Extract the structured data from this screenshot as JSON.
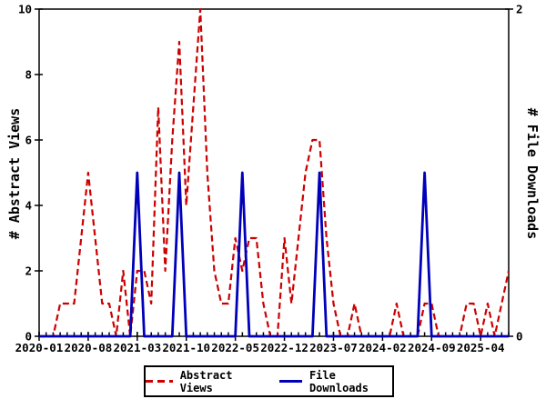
{
  "chart": {
    "left_axis": {
      "label": "# Abstract Views",
      "ticks": [
        0,
        2,
        4,
        6,
        8,
        10
      ]
    },
    "right_axis": {
      "label": "# File Downloads",
      "ticks": [
        0,
        2
      ]
    },
    "x_axis": {
      "major_tick_months": [
        0,
        7,
        14,
        21,
        28,
        35,
        42,
        49,
        56,
        63
      ],
      "major_tick_labels": [
        "2020-01",
        "2020-08",
        "2021-03",
        "2021-10",
        "2022-05",
        "2022-12",
        "2023-07",
        "2024-02",
        "2024-09",
        "2025-04"
      ]
    },
    "colors": {
      "abstract_views": "#cc0000",
      "file_downloads": "#0000bb",
      "axis": "#000000",
      "background": "#ffffff"
    }
  },
  "chart_data": {
    "type": "line",
    "title": "",
    "xlabel": "",
    "left_ylabel": "# Abstract Views",
    "right_ylabel": "# File Downloads",
    "left_ylim": [
      0,
      10
    ],
    "right_ylim": [
      0,
      2
    ],
    "grid": false,
    "legend_position": "bottom",
    "x": [
      "2020-01",
      "2020-02",
      "2020-03",
      "2020-04",
      "2020-05",
      "2020-06",
      "2020-07",
      "2020-08",
      "2020-09",
      "2020-10",
      "2020-11",
      "2020-12",
      "2021-01",
      "2021-02",
      "2021-03",
      "2021-04",
      "2021-05",
      "2021-06",
      "2021-07",
      "2021-08",
      "2021-09",
      "2021-10",
      "2021-11",
      "2021-12",
      "2022-01",
      "2022-02",
      "2022-03",
      "2022-04",
      "2022-05",
      "2022-06",
      "2022-07",
      "2022-08",
      "2022-09",
      "2022-10",
      "2022-11",
      "2022-12",
      "2023-01",
      "2023-02",
      "2023-03",
      "2023-04",
      "2023-05",
      "2023-06",
      "2023-07",
      "2023-08",
      "2023-09",
      "2023-10",
      "2023-11",
      "2023-12",
      "2024-01",
      "2024-02",
      "2024-03",
      "2024-04",
      "2024-05",
      "2024-06",
      "2024-07",
      "2024-08",
      "2024-09",
      "2024-10",
      "2024-11",
      "2024-12",
      "2025-01",
      "2025-02",
      "2025-03",
      "2025-04",
      "2025-05",
      "2025-06",
      "2025-07",
      "2025-08"
    ],
    "series": [
      {
        "name": "Abstract Views",
        "axis": "left",
        "color": "#cc0000",
        "style": "dashed",
        "values": [
          0,
          0,
          0,
          1,
          1,
          1,
          3,
          5,
          3,
          1,
          1,
          0,
          2,
          0,
          2,
          2,
          1,
          7,
          2,
          6,
          9,
          4,
          7,
          10,
          5,
          2,
          1,
          1,
          3,
          2,
          3,
          3,
          1,
          0,
          0,
          3,
          1,
          3,
          5,
          6,
          6,
          3,
          1,
          0,
          0,
          1,
          0,
          0,
          0,
          0,
          0,
          1,
          0,
          0,
          0,
          1,
          1,
          0,
          0,
          0,
          0,
          1,
          1,
          0,
          1,
          0,
          1,
          2
        ]
      },
      {
        "name": "File Downloads",
        "axis": "right",
        "color": "#0000bb",
        "style": "solid",
        "values": [
          0,
          0,
          0,
          0,
          0,
          0,
          0,
          0,
          0,
          0,
          0,
          0,
          0,
          0,
          1,
          0,
          0,
          0,
          0,
          0,
          1,
          0,
          0,
          0,
          0,
          0,
          0,
          0,
          0,
          1,
          0,
          0,
          0,
          0,
          0,
          0,
          0,
          0,
          0,
          0,
          1,
          0,
          0,
          0,
          0,
          0,
          0,
          0,
          0,
          0,
          0,
          0,
          0,
          0,
          0,
          1,
          0,
          0,
          0,
          0,
          0,
          0,
          0,
          0,
          0,
          0,
          0,
          0
        ]
      }
    ]
  }
}
